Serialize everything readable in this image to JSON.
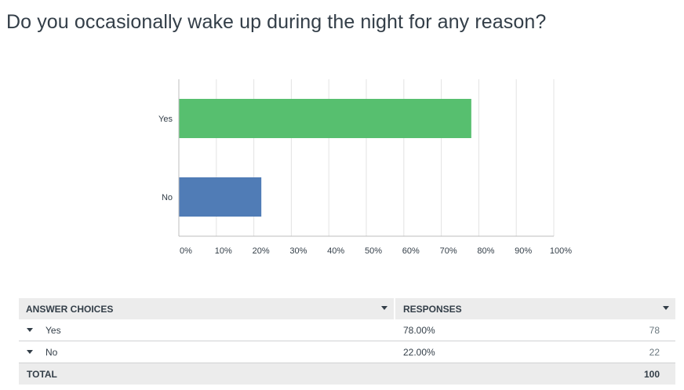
{
  "question": {
    "title": "Do you occasionally wake up during the night for any reason?"
  },
  "chart_data": {
    "type": "bar",
    "orientation": "horizontal",
    "categories": [
      "Yes",
      "No"
    ],
    "values": [
      78,
      22
    ],
    "colors": [
      "#57bf6f",
      "#507cb6"
    ],
    "xlim": [
      0,
      100
    ],
    "xticks": [
      "0%",
      "10%",
      "20%",
      "30%",
      "40%",
      "50%",
      "60%",
      "70%",
      "80%",
      "90%",
      "100%"
    ],
    "grid": true
  },
  "table": {
    "headers": {
      "choices": "ANSWER CHOICES",
      "responses": "RESPONSES"
    },
    "rows": [
      {
        "choice": "Yes",
        "percent": "78.00%",
        "count": "78"
      },
      {
        "choice": "No",
        "percent": "22.00%",
        "count": "22"
      }
    ],
    "total": {
      "label": "TOTAL",
      "count": "100"
    }
  }
}
